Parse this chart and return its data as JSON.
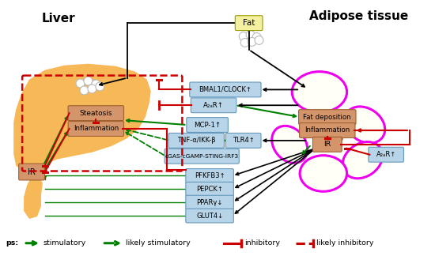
{
  "title_liver": "Liver",
  "title_adipose": "Adipose tissue",
  "title_fat": "Fat",
  "bg_color": "#ffffff",
  "green_solid": "#008000",
  "green_dashed": "#008000",
  "red_color": "#cc0000",
  "black": "#000000",
  "box_blue_face": "#b8d4e8",
  "box_blue_edge": "#6699bb",
  "box_orange_face": "#d4956a",
  "box_orange_edge": "#a06030",
  "box_fat_face": "#f5f0a0",
  "box_fat_edge": "#999900",
  "liver_face": "#f5a020",
  "liver_alpha": 0.75,
  "adipose_petal_face": "#fffff5",
  "adipose_petal_edge": "#ee00ee",
  "adipose_brown": "#8B4513"
}
